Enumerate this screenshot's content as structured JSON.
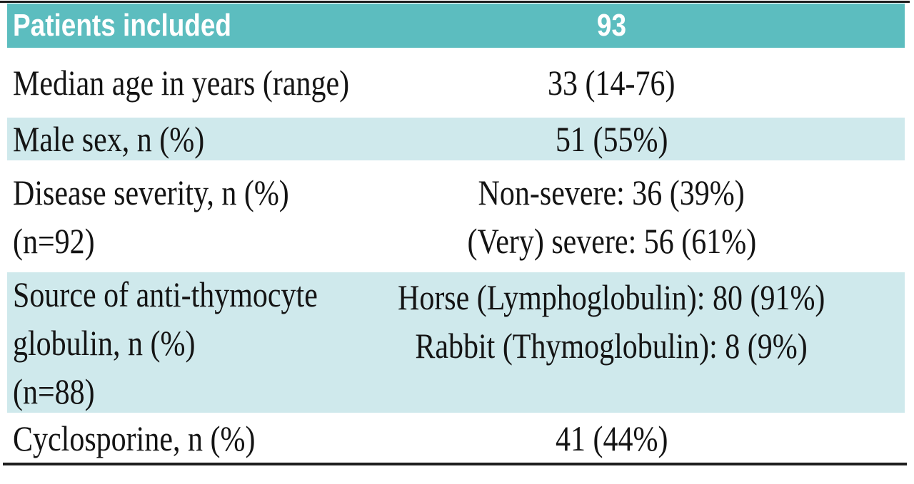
{
  "table": {
    "header": {
      "label": "Patients included",
      "value": "93"
    },
    "rows": [
      {
        "label_lines": [
          "Median age in years (range)"
        ],
        "value_lines": [
          "33 (14-76)"
        ],
        "shaded": false
      },
      {
        "label_lines": [
          "Male sex, n (%)"
        ],
        "value_lines": [
          "51 (55%)"
        ],
        "shaded": true
      },
      {
        "label_lines": [
          "Disease severity, n (%)",
          "(n=92)"
        ],
        "value_lines": [
          "Non-severe: 36 (39%)",
          "(Very) severe: 56 (61%)"
        ],
        "shaded": false
      },
      {
        "label_lines": [
          "Source of anti-thymocyte",
          "globulin, n (%)",
          "(n=88)"
        ],
        "value_lines": [
          "Horse (Lymphoglobulin): 80 (91%)",
          "Rabbit (Thymoglobulin): 8 (9%)"
        ],
        "shaded": true
      },
      {
        "label_lines": [
          "Cyclosporine, n (%)"
        ],
        "value_lines": [
          "41 (44%)"
        ],
        "shaded": false
      }
    ],
    "colors": {
      "header_bg": "#5cbdbf",
      "header_text": "#ffffff",
      "shaded_bg": "#cfe9ec",
      "body_text": "#141414",
      "rule": "#1e1e1e"
    }
  }
}
